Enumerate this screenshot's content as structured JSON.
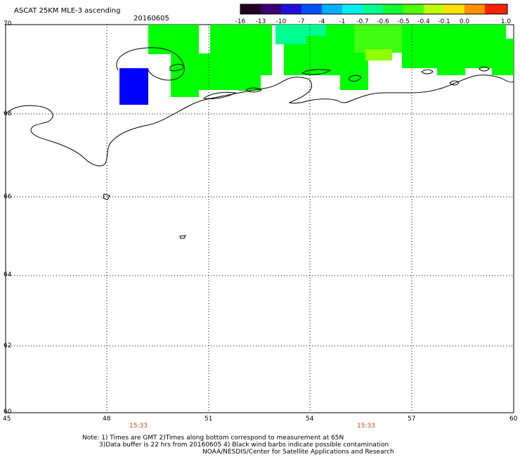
{
  "header": {
    "title": "ASCAT 25KM MLE-3 ascending",
    "date": "20160605"
  },
  "colorbar": {
    "labels": [
      "-16",
      "-13",
      "-10",
      "-7",
      "-4",
      "-1",
      "-0.7",
      "-0.6",
      "-0.5",
      "-0.4",
      "-0.1",
      "0.0",
      "1.0"
    ],
    "colors": [
      "#200020",
      "#3a005a",
      "#3c00a8",
      "#1020f0",
      "#0070ff",
      "#00c8ff",
      "#00ffd0",
      "#00ff80",
      "#20ff20",
      "#90ff00",
      "#f0ff00",
      "#ffb000",
      "#ff4000",
      "#ff0000"
    ]
  },
  "map": {
    "latitudes": [
      "70",
      "68",
      "66",
      "64",
      "62",
      "60"
    ],
    "longitudes": [
      "45",
      "48",
      "51",
      "54",
      "57",
      "60"
    ],
    "pass_times": [
      "15:33",
      "15:33"
    ],
    "colors": {
      "grid": "#000000",
      "coast": "#000000",
      "data_green": "#00ff00",
      "data_blue": "#0000ff",
      "time": "#d03a10"
    }
  },
  "notes": {
    "line1": "Note: 1) Times are GMT 2)Times along bottom correspond to measurement at 65N",
    "line2": "3)Data buffer is 22 hrs from 20160605 4) Black wind barbs indicate possible contamination",
    "line3": "NOAA/NESDIS/Center for Satellite Applications and Research"
  }
}
